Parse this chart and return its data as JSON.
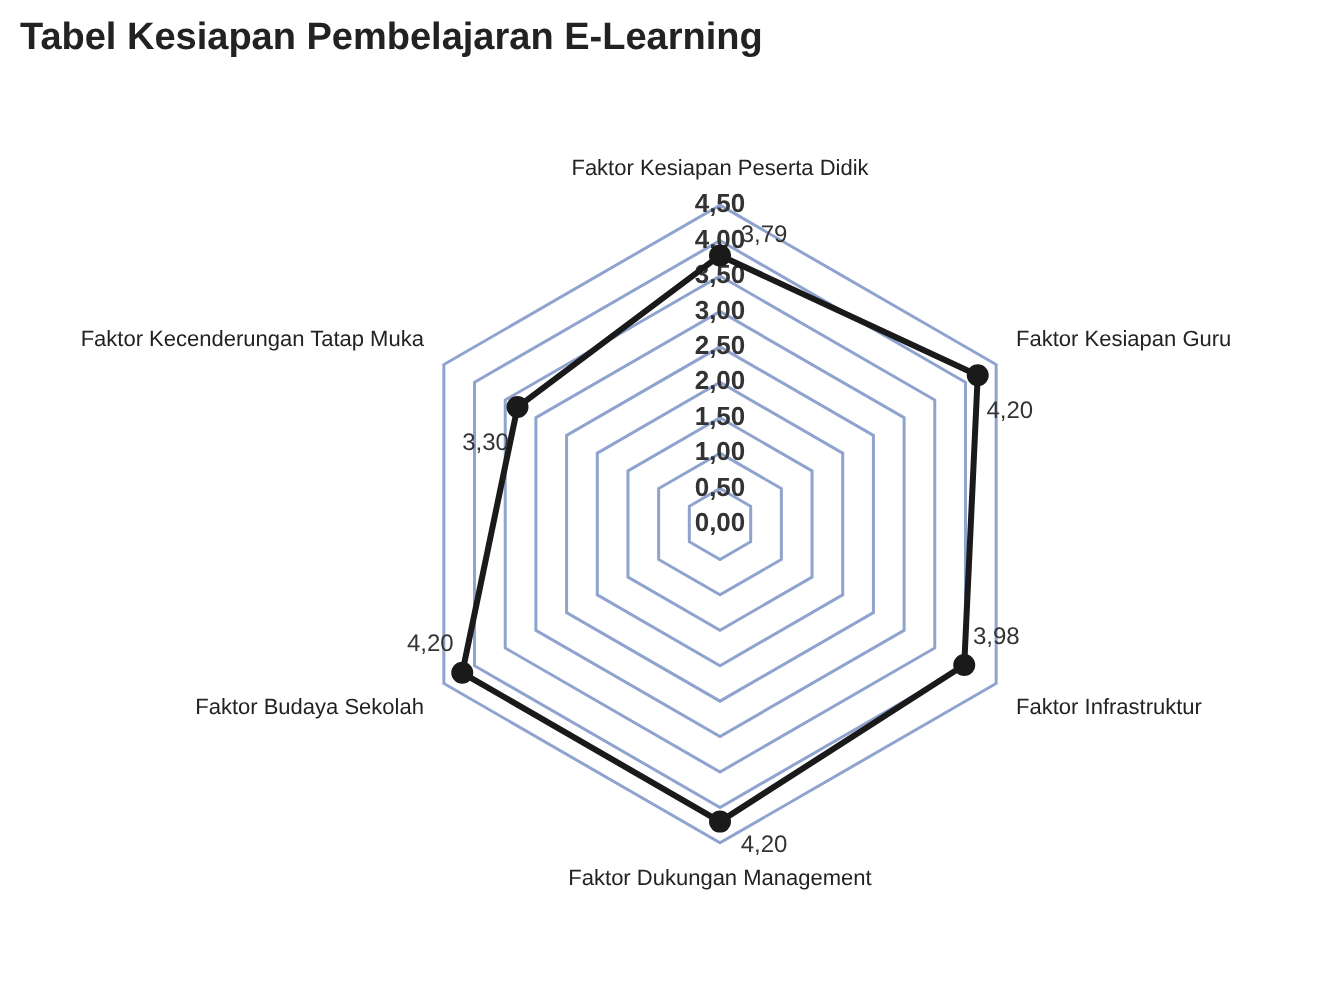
{
  "chart_data": {
    "type": "radar",
    "title": "Tabel Kesiapan Pembelajaran E-Learning",
    "categories": [
      "Faktor Kesiapan Peserta Didik",
      "Faktor Kesiapan Guru",
      "Faktor Infrastruktur",
      "Faktor Dukungan Management",
      "Faktor Budaya Sekolah",
      "Faktor Kecenderungan Tatap Muka"
    ],
    "series": [
      {
        "color": "#1a1a1a",
        "values": [
          3.79,
          4.2,
          3.98,
          4.2,
          4.2,
          3.3
        ],
        "value_labels": [
          "3,79",
          "4,20",
          "3,98",
          "4,20",
          "4,20",
          "3,30"
        ]
      }
    ],
    "ylim": [
      0,
      4.5
    ],
    "yticks": [
      {
        "value": 0,
        "label": "0,00"
      },
      {
        "value": 0.5,
        "label": "0,50"
      },
      {
        "value": 1,
        "label": "1,00"
      },
      {
        "value": 1.5,
        "label": "1,50"
      },
      {
        "value": 2,
        "label": "2,00"
      },
      {
        "value": 2.5,
        "label": "2,50"
      },
      {
        "value": 3,
        "label": "3,00"
      },
      {
        "value": 3.5,
        "label": "3,50"
      },
      {
        "value": 4,
        "label": "4,00"
      },
      {
        "value": 4.5,
        "label": "4,50"
      }
    ],
    "grid": true,
    "marker": "circle",
    "legend": false
  }
}
